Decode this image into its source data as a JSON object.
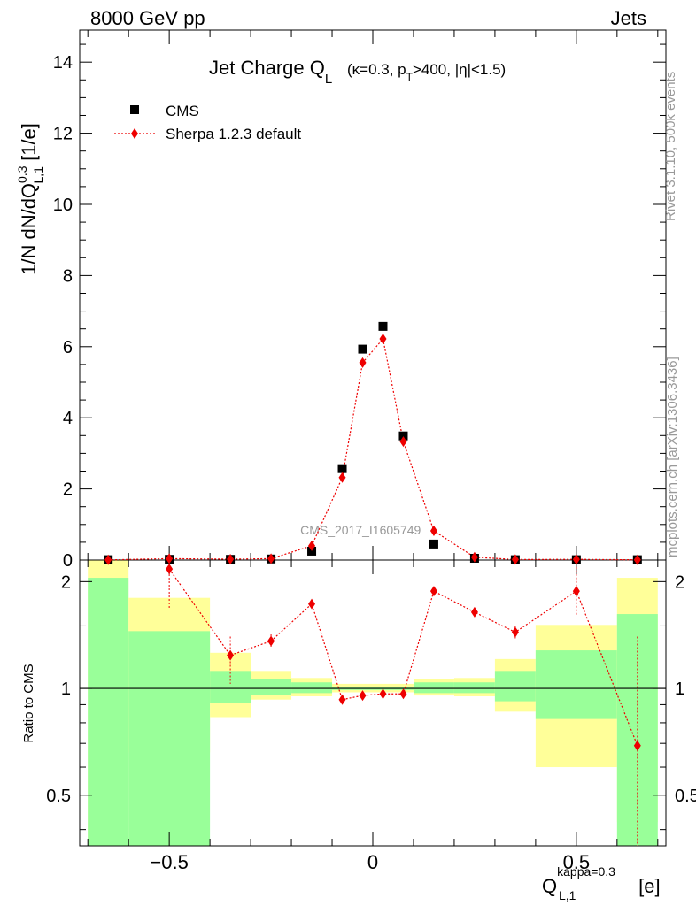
{
  "header": {
    "left": "8000 GeV pp",
    "right": "Jets"
  },
  "side": {
    "rivet": "Rivet 3.1.10,  500k events",
    "mcplots": "mcplots.cern.ch [arXiv:1306.3436]"
  },
  "watermark": "CMS_2017_I1605749",
  "legend": {
    "cms": "CMS",
    "mc": "Sherpa 1.2.3 default"
  },
  "colors": {
    "data": "#000000",
    "mc": "#ee0000",
    "band_inner": "#99ff99",
    "band_outer": "#ffff99"
  },
  "chart_data": [
    {
      "type": "scatter",
      "title": {
        "main": "Jet Charge Q",
        "main_sub": "L",
        "cuts": "(κ=0.3, p",
        "cuts_sub": "T",
        "cuts_rest": ">400, |η|<1.5)"
      },
      "ylabel": {
        "pre": "1/N dN/dQ",
        "sup": "0.3",
        "sub": "L,1",
        "post": " [1/e]"
      },
      "xlim": [
        -0.72,
        0.72
      ],
      "ylim": [
        0,
        14.9
      ],
      "yticks": [
        0,
        2,
        4,
        6,
        8,
        10,
        12,
        14
      ],
      "ytick_labels": [
        "0",
        "2",
        "4",
        "6",
        "8",
        "10",
        "12",
        "14"
      ],
      "series": [
        {
          "name": "CMS",
          "x": [
            -0.65,
            -0.5,
            -0.35,
            -0.25,
            -0.15,
            -0.075,
            -0.025,
            0.025,
            0.075,
            0.15,
            0.25,
            0.35,
            0.5,
            0.65
          ],
          "y": [
            0.01,
            0.02,
            0.02,
            0.03,
            0.25,
            2.57,
            5.93,
            6.57,
            3.49,
            0.45,
            0.05,
            0.01,
            0.01,
            0.01
          ]
        },
        {
          "name": "Sherpa 1.2.3 default",
          "x": [
            -0.65,
            -0.5,
            -0.35,
            -0.25,
            -0.15,
            -0.075,
            -0.025,
            0.025,
            0.075,
            0.15,
            0.25,
            0.35,
            0.5,
            0.65
          ],
          "y": [
            0.005,
            0.04,
            0.025,
            0.04,
            0.4,
            2.32,
            5.55,
            6.22,
            3.33,
            0.82,
            0.08,
            0.015,
            0.02,
            0.007
          ]
        }
      ]
    },
    {
      "type": "scatter",
      "ylabel": "Ratio to CMS",
      "xlabel": {
        "main": "Q",
        "sup": "kappa=0.3",
        "sub": "L,1",
        "post": " [e]"
      },
      "xlim": [
        -0.72,
        0.72
      ],
      "ylim": [
        0.36,
        2.3
      ],
      "yscale": "log",
      "yticks": [
        0.5,
        1,
        2
      ],
      "ytick_labels": [
        "0.5",
        "1",
        "2"
      ],
      "xticks": [
        -0.5,
        0,
        0.5
      ],
      "xtick_labels": [
        "−0.5",
        "0",
        "0.5"
      ],
      "bands": [
        {
          "x0": -0.7,
          "x1": -0.6,
          "lo1": 0.36,
          "hi1": 2.05,
          "lo2": 0.36,
          "hi2": 2.3
        },
        {
          "x0": -0.6,
          "x1": -0.4,
          "lo1": 0.36,
          "hi1": 1.45,
          "lo2": 0.66,
          "hi2": 1.8
        },
        {
          "x0": -0.4,
          "x1": -0.3,
          "lo1": 0.91,
          "hi1": 1.12,
          "lo2": 0.83,
          "hi2": 1.26
        },
        {
          "x0": -0.3,
          "x1": -0.2,
          "lo1": 0.96,
          "hi1": 1.06,
          "lo2": 0.93,
          "hi2": 1.12
        },
        {
          "x0": -0.2,
          "x1": -0.1,
          "lo1": 0.97,
          "hi1": 1.04,
          "lo2": 0.95,
          "hi2": 1.07
        },
        {
          "x0": -0.1,
          "x1": 0.1,
          "lo1": 0.99,
          "hi1": 1.01,
          "lo2": 0.975,
          "hi2": 1.03
        },
        {
          "x0": 0.1,
          "x1": 0.2,
          "lo1": 0.97,
          "hi1": 1.04,
          "lo2": 0.955,
          "hi2": 1.06
        },
        {
          "x0": 0.2,
          "x1": 0.3,
          "lo1": 0.97,
          "hi1": 1.04,
          "lo2": 0.95,
          "hi2": 1.07
        },
        {
          "x0": 0.3,
          "x1": 0.4,
          "lo1": 0.92,
          "hi1": 1.12,
          "lo2": 0.86,
          "hi2": 1.21
        },
        {
          "x0": 0.4,
          "x1": 0.6,
          "lo1": 0.82,
          "hi1": 1.28,
          "lo2": 0.6,
          "hi2": 1.51
        },
        {
          "x0": 0.6,
          "x1": 0.7,
          "lo1": 0.36,
          "hi1": 1.62,
          "lo2": 0.42,
          "hi2": 2.05
        }
      ],
      "ratio": {
        "x": [
          -0.5,
          -0.35,
          -0.25,
          -0.15,
          -0.075,
          -0.025,
          0.025,
          0.075,
          0.15,
          0.25,
          0.35,
          0.5,
          0.65
        ],
        "y": [
          2.17,
          1.24,
          1.36,
          1.73,
          0.93,
          0.955,
          0.965,
          0.965,
          1.88,
          1.64,
          1.44,
          1.88,
          0.69
        ],
        "lo": [
          1.68,
          1.03,
          1.31,
          1.7,
          0.915,
          0.945,
          0.955,
          0.955,
          1.86,
          1.62,
          1.38,
          1.6,
          0.36
        ],
        "hi": [
          2.3,
          1.4,
          1.42,
          1.77,
          0.945,
          0.965,
          0.975,
          0.975,
          1.9,
          1.66,
          1.5,
          2.2,
          1.4
        ]
      },
      "watermark": "CMS_2017_I1605749"
    }
  ]
}
